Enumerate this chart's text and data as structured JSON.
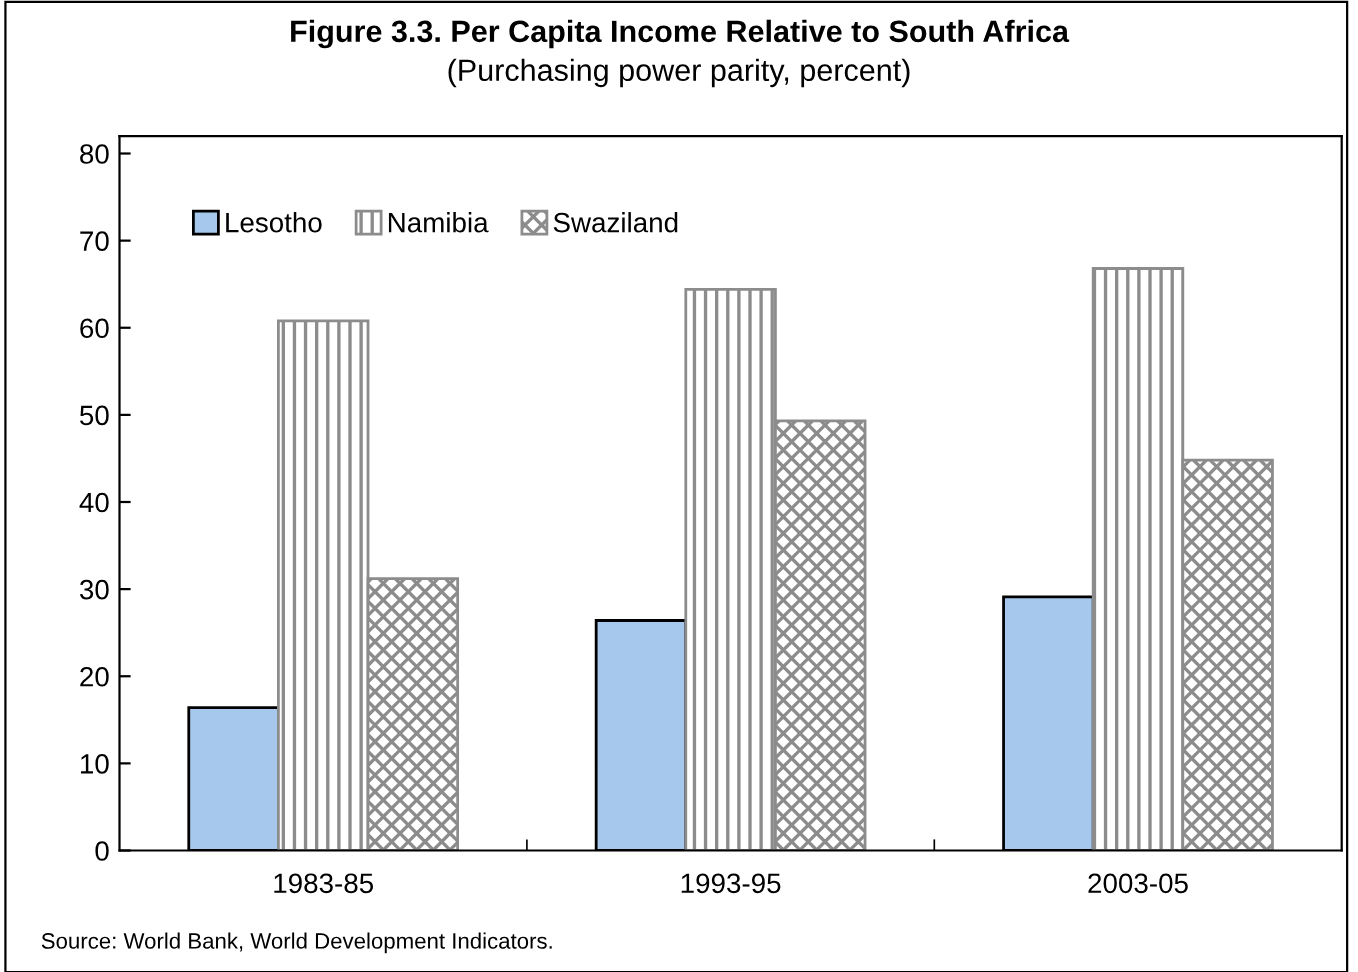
{
  "chart_data": {
    "type": "bar",
    "title": "Figure 3.3. Per Capita Income Relative to South Africa",
    "subtitle": "(Purchasing power parity, percent)",
    "categories": [
      "1983-85",
      "1993-95",
      "2003-05"
    ],
    "series": [
      {
        "name": "Lesotho",
        "color": "#a6c8ec",
        "values": [
          16.4,
          26.4,
          29.1
        ]
      },
      {
        "name": "Namibia",
        "color": "#8c8c8c",
        "values": [
          60.8,
          64.4,
          66.8
        ]
      },
      {
        "name": "Swaziland",
        "color": "#8c8c8c",
        "values": [
          31.2,
          49.3,
          44.8
        ]
      }
    ],
    "ylim": [
      0,
      82
    ],
    "yticks": [
      0,
      10,
      20,
      30,
      40,
      50,
      60,
      70,
      80
    ],
    "grid": false,
    "legend": "top left",
    "annotations": [
      "Source: World Bank, World Development Indicators."
    ]
  }
}
